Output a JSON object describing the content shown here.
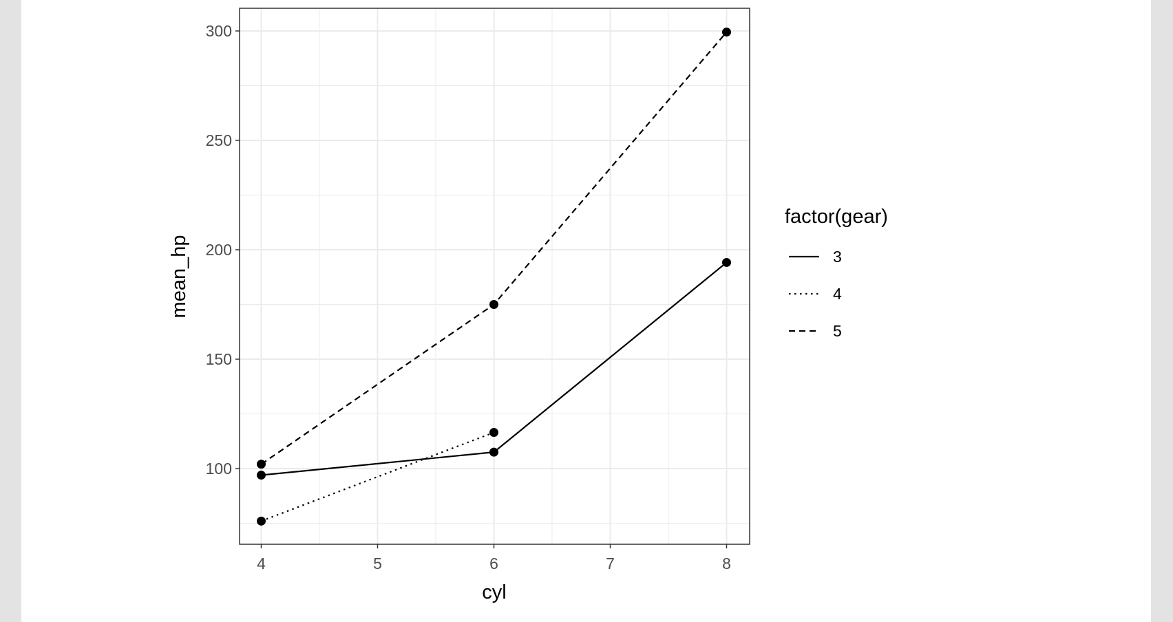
{
  "colors": {
    "window_background": "#e3e3e3",
    "page_background": "#ffffff",
    "panel_border": "#333333",
    "grid": "#ebebeb",
    "ink": "#000000",
    "tick_text": "#4d4d4d"
  },
  "chart_data": {
    "type": "line",
    "theme": "bw",
    "title": "",
    "xlabel": "cyl",
    "ylabel": "mean_hp",
    "xlim": [
      3.9,
      8.1
    ],
    "ylim": [
      65,
      310
    ],
    "x_ticks": [
      4,
      5,
      6,
      7,
      8
    ],
    "x_minor_ticks": [
      4.5,
      5.5,
      6.5,
      7.5
    ],
    "y_ticks": [
      100,
      150,
      200,
      250,
      300
    ],
    "y_minor_ticks": [
      75,
      125,
      175,
      225,
      275
    ],
    "grid": true,
    "points": true,
    "legend": {
      "title": "factor(gear)",
      "position": "right",
      "entries": [
        {
          "label": "3",
          "linetype": "solid"
        },
        {
          "label": "4",
          "linetype": "dotted"
        },
        {
          "label": "5",
          "linetype": "dashed"
        }
      ]
    },
    "series": [
      {
        "name": "3",
        "linetype": "solid",
        "x": [
          4,
          6,
          8
        ],
        "y": [
          97,
          107.5,
          194.2
        ]
      },
      {
        "name": "4",
        "linetype": "dotted",
        "x": [
          4,
          6
        ],
        "y": [
          76,
          116.5
        ]
      },
      {
        "name": "5",
        "linetype": "dashed",
        "x": [
          4,
          6,
          8
        ],
        "y": [
          102,
          175,
          299.5
        ]
      }
    ]
  }
}
